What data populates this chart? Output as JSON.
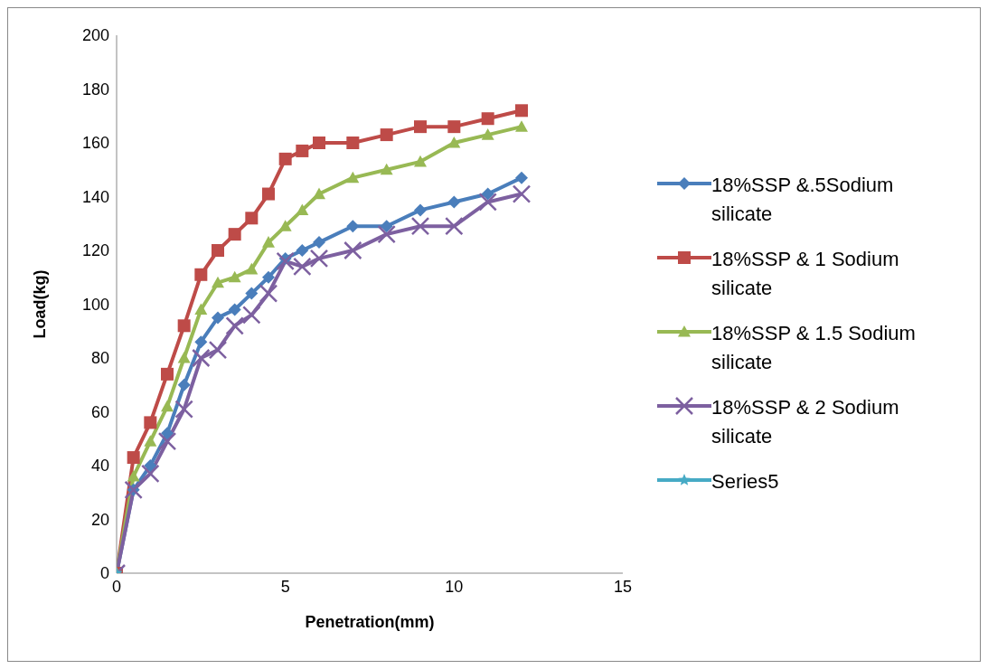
{
  "chart_data": {
    "type": "line",
    "xlabel": "Penetration(mm)",
    "ylabel": "Load(kg)",
    "x": [
      0,
      0.5,
      1,
      1.5,
      2,
      2.5,
      3,
      3.5,
      4,
      4.5,
      5,
      5.5,
      6,
      7,
      8,
      9,
      10,
      11,
      12
    ],
    "xlim": [
      0,
      15
    ],
    "xticks": [
      0,
      5,
      10,
      15
    ],
    "ylim": [
      0,
      200
    ],
    "yticks": [
      0,
      20,
      40,
      60,
      80,
      100,
      120,
      140,
      160,
      180,
      200
    ],
    "grid": false,
    "legend": "right",
    "line_style": "solid",
    "series": [
      {
        "name": "18%SSP &.5Sodium silicate",
        "color": "#4a7ebb",
        "marker": "diamond",
        "values": [
          0,
          31,
          40,
          52,
          70,
          86,
          95,
          98,
          104,
          110,
          117,
          120,
          123,
          129,
          129,
          135,
          138,
          141,
          147
        ]
      },
      {
        "name": "18%SSP & 1 Sodium silicate",
        "color": "#be4b48",
        "marker": "square",
        "values": [
          0,
          43,
          56,
          74,
          92,
          111,
          120,
          126,
          132,
          141,
          154,
          157,
          160,
          160,
          163,
          166,
          166,
          169,
          172
        ]
      },
      {
        "name": "18%SSP & 1.5 Sodium silicate",
        "color": "#98b954",
        "marker": "triangle",
        "values": [
          0,
          36,
          49,
          62,
          80,
          98,
          108,
          110,
          113,
          123,
          129,
          135,
          141,
          147,
          150,
          153,
          160,
          163,
          166
        ]
      },
      {
        "name": "18%SSP & 2 Sodium silicate",
        "color": "#7d60a0",
        "marker": "cross",
        "values": [
          0,
          31,
          37,
          49,
          61,
          80,
          83,
          92,
          96,
          104,
          116,
          114,
          117,
          120,
          126,
          129,
          129,
          138,
          141
        ]
      },
      {
        "name": "Series5",
        "color": "#46aac5",
        "marker": "star",
        "x": [
          0
        ],
        "values": [
          0
        ]
      }
    ]
  }
}
